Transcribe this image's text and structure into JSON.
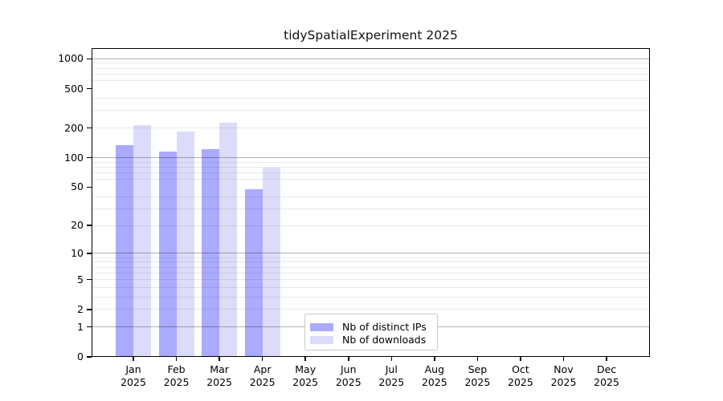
{
  "title": "tidySpatialExperiment 2025",
  "chart_data": {
    "type": "bar",
    "title": "tidySpatialExperiment 2025",
    "categories": [
      "Jan 2025",
      "Feb 2025",
      "Mar 2025",
      "Apr 2025",
      "May 2025",
      "Jun 2025",
      "Jul 2025",
      "Aug 2025",
      "Sep 2025",
      "Oct 2025",
      "Nov 2025",
      "Dec 2025"
    ],
    "series": [
      {
        "name": "Nb of distinct IPs",
        "color": "#aaaaff",
        "values": [
          133,
          116,
          122,
          48,
          null,
          null,
          null,
          null,
          null,
          null,
          null,
          null
        ]
      },
      {
        "name": "Nb of downloads",
        "color": "#dcdcfa",
        "values": [
          216,
          185,
          226,
          80,
          null,
          null,
          null,
          null,
          null,
          null,
          null,
          null
        ]
      }
    ],
    "xlabel": "",
    "ylabel": "",
    "yscale": "log1p",
    "ylim": [
      0,
      1280
    ],
    "yticks": [
      0,
      1,
      2,
      5,
      10,
      20,
      50,
      100,
      200,
      500,
      1000
    ],
    "decade_gridlines": [
      1,
      10,
      100,
      1000
    ],
    "minor_gridlines": [
      2,
      3,
      4,
      5,
      6,
      7,
      8,
      9,
      20,
      30,
      40,
      60,
      70,
      80,
      90,
      200,
      300,
      400,
      600,
      700,
      800,
      900
    ],
    "grid": "on",
    "legend_position": "bottom-center-inside",
    "bar_color_ips": "#aaaaff",
    "bar_color_downloads": "#dcdcfa"
  }
}
